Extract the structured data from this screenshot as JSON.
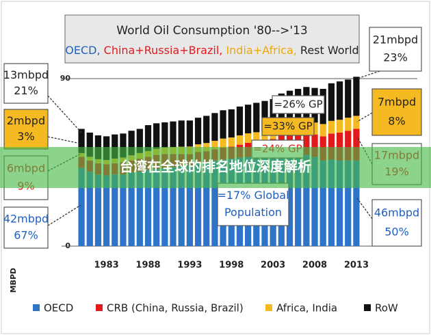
{
  "chart_data": {
    "type": "bar",
    "stacked": true,
    "title": "World Oil Consumption '80-->'13",
    "subtitle": [
      {
        "text": "OECD, ",
        "color": "#1f5fbf"
      },
      {
        "text": "China+Russia+Brazil, ",
        "color": "#e31a1c"
      },
      {
        "text": "India+Africa, ",
        "color": "#f0a800"
      },
      {
        "text": "Rest World",
        "color": "#222222"
      }
    ],
    "y_label": "MBPD",
    "categories": [
      null,
      null,
      null,
      "1983",
      null,
      null,
      null,
      null,
      "1988",
      null,
      null,
      null,
      null,
      "1993",
      null,
      null,
      null,
      null,
      "1998",
      null,
      null,
      null,
      null,
      "2003",
      null,
      null,
      null,
      null,
      "2008",
      null,
      null,
      null,
      null,
      "2013"
    ],
    "series": [
      {
        "name": "OECD",
        "color": "#2e75c9",
        "values": [
          42,
          40,
          38.5,
          38,
          38.5,
          38.5,
          39.5,
          40,
          41,
          41.5,
          42,
          42.5,
          43,
          43.5,
          44.5,
          45,
          46,
          46.5,
          47,
          47.5,
          48,
          48,
          48,
          48.5,
          49.5,
          50,
          49.5,
          49,
          48,
          46,
          46.5,
          46,
          46,
          46
        ]
      },
      {
        "name": "CRB (China, Russia, Brazil)",
        "color": "#e31a1c",
        "values": [
          6,
          6,
          6,
          6,
          6,
          6.5,
          6.5,
          7,
          7,
          7.5,
          7.5,
          7,
          6.5,
          6,
          6,
          6,
          6,
          6.5,
          6.5,
          7,
          7.5,
          8,
          8.5,
          9,
          10,
          10.5,
          11,
          11.5,
          12,
          13,
          14,
          15,
          16,
          17
        ]
      },
      {
        "name": "Africa, India",
        "color": "#f5b921",
        "values": [
          2,
          2,
          2.2,
          2.3,
          2.5,
          2.6,
          2.8,
          3,
          3.1,
          3.3,
          3.5,
          3.7,
          3.9,
          4,
          4.2,
          4.4,
          4.6,
          4.8,
          4.9,
          5,
          5.1,
          5.2,
          5.3,
          5.4,
          5.6,
          5.8,
          6,
          6.2,
          6.4,
          6.6,
          6.8,
          6.9,
          7,
          7
        ]
      },
      {
        "name": "RoW",
        "color": "#111111",
        "values": [
          13,
          13,
          12.8,
          12.7,
          13,
          12.9,
          13.2,
          13,
          13.9,
          13.7,
          13.5,
          13.8,
          14.1,
          14,
          14.3,
          14.6,
          14.9,
          15.2,
          15.1,
          15.5,
          15.4,
          15.8,
          16.2,
          16.1,
          16.9,
          17.2,
          18,
          18.8,
          18.6,
          18.9,
          20.2,
          20.6,
          20.5,
          21
        ]
      }
    ],
    "ylim": [
      0,
      90
    ],
    "yticks": [
      0,
      90
    ],
    "grid": true,
    "legend": "bottom",
    "annotations": [
      {
        "lines": [
          "13mbpd",
          "21%"
        ],
        "color": "#222222",
        "fill": "#ffffff"
      },
      {
        "lines": [
          "2mbpd",
          "3%"
        ],
        "color": "#222222",
        "fill": "#f5b921"
      },
      {
        "lines": [
          "6mbpd",
          "9%"
        ],
        "color": "#e31a1c",
        "fill": "#ffffff"
      },
      {
        "lines": [
          "42mbpd",
          "67%"
        ],
        "color": "#1f5fbf",
        "fill": "#ffffff"
      },
      {
        "lines": [
          "21mbpd",
          "23%"
        ],
        "color": "#222222",
        "fill": "#ffffff"
      },
      {
        "lines": [
          "7mbpd",
          "8%"
        ],
        "color": "#222222",
        "fill": "#f5b921"
      },
      {
        "lines": [
          "17mbpd",
          "19%"
        ],
        "color": "#e31a1c",
        "fill": "#ffffff"
      },
      {
        "lines": [
          "46mbpd",
          "50%"
        ],
        "color": "#1f5fbf",
        "fill": "#ffffff"
      },
      {
        "lines": [
          "=26% GP"
        ],
        "color": "#222222",
        "fill": "#ffffff"
      },
      {
        "lines": [
          "=33% GP"
        ],
        "color": "#222222",
        "fill": "#f5b921"
      },
      {
        "lines": [
          "=24% GP"
        ],
        "color": "#e31a1c",
        "fill": "#ffffff"
      },
      {
        "lines": [
          "=17% Global",
          "Population"
        ],
        "color": "#1f5fbf",
        "fill": "#ffffff"
      }
    ]
  },
  "banner": {
    "text": "台湾在全球的排名地位深度解析"
  }
}
